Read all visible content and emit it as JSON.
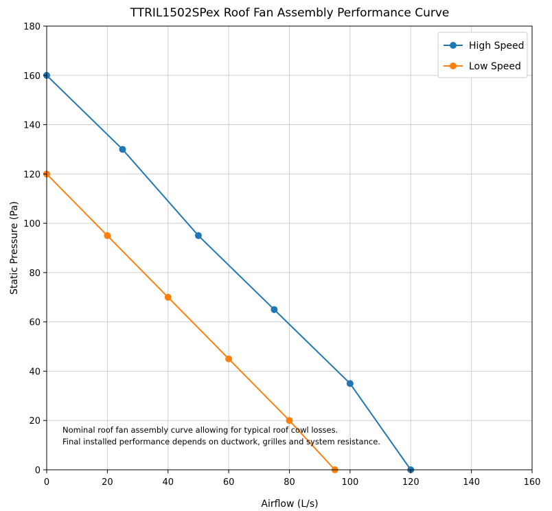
{
  "chart_data": {
    "type": "line",
    "title": "TTRIL1502SPex Roof Fan Assembly Performance Curve",
    "xlabel": "Airflow (L/s)",
    "ylabel": "Static Pressure (Pa)",
    "xlim": [
      0,
      160
    ],
    "ylim": [
      0,
      180
    ],
    "xticks": [
      0,
      20,
      40,
      60,
      80,
      100,
      120,
      140,
      160
    ],
    "yticks": [
      0,
      20,
      40,
      60,
      80,
      100,
      120,
      140,
      160,
      180
    ],
    "grid": true,
    "legend_position": "top-right",
    "series": [
      {
        "name": "High Speed",
        "color": "#1f77b4",
        "x": [
          0,
          25,
          50,
          75,
          100,
          120
        ],
        "y": [
          160,
          130,
          95,
          65,
          35,
          0
        ]
      },
      {
        "name": "Low Speed",
        "color": "#ff7f0e",
        "x": [
          0,
          20,
          40,
          60,
          80,
          95
        ],
        "y": [
          120,
          95,
          70,
          45,
          20,
          0
        ]
      }
    ],
    "annotation": [
      "Nominal roof fan assembly curve allowing for typical roof cowl losses.",
      "Final installed performance depends on ductwork, grilles and system resistance."
    ]
  }
}
